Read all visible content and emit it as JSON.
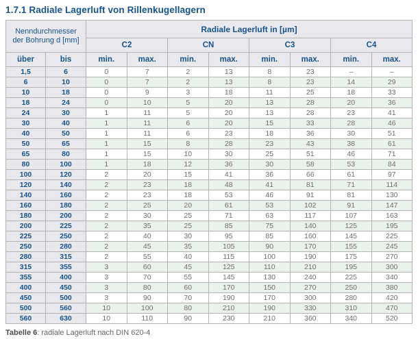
{
  "page": {
    "title": "1.7.1 Radiale Lagerluft von Rillenkugellagern"
  },
  "table": {
    "row_group_header": "Nenndurchmesser der Bohrung d [mm]",
    "col_group_header": "Radiale Lagerluft in [µm]",
    "classes": [
      "C2",
      "CN",
      "C3",
      "C4"
    ],
    "ueber_label": "über",
    "bis_label": "bis",
    "min_label": "min.",
    "max_label": "max.",
    "rows": [
      [
        "1,5",
        "6",
        "0",
        "7",
        "2",
        "13",
        "8",
        "23",
        "–",
        "–"
      ],
      [
        "6",
        "10",
        "0",
        "7",
        "2",
        "13",
        "8",
        "23",
        "14",
        "29"
      ],
      [
        "10",
        "18",
        "0",
        "9",
        "3",
        "18",
        "11",
        "25",
        "18",
        "33"
      ],
      [
        "18",
        "24",
        "0",
        "10",
        "5",
        "20",
        "13",
        "28",
        "20",
        "36"
      ],
      [
        "24",
        "30",
        "1",
        "11",
        "5",
        "20",
        "13",
        "28",
        "23",
        "41"
      ],
      [
        "30",
        "40",
        "1",
        "11",
        "6",
        "20",
        "15",
        "33",
        "28",
        "46"
      ],
      [
        "40",
        "50",
        "1",
        "11",
        "6",
        "23",
        "18",
        "36",
        "30",
        "51"
      ],
      [
        "50",
        "65",
        "1",
        "15",
        "8",
        "28",
        "23",
        "43",
        "38",
        "61"
      ],
      [
        "65",
        "80",
        "1",
        "15",
        "10",
        "30",
        "25",
        "51",
        "46",
        "71"
      ],
      [
        "80",
        "100",
        "1",
        "18",
        "12",
        "36",
        "30",
        "58",
        "53",
        "84"
      ],
      [
        "100",
        "120",
        "2",
        "20",
        "15",
        "41",
        "36",
        "66",
        "61",
        "97"
      ],
      [
        "120",
        "140",
        "2",
        "23",
        "18",
        "48",
        "41",
        "81",
        "71",
        "114"
      ],
      [
        "140",
        "160",
        "2",
        "23",
        "18",
        "53",
        "46",
        "91",
        "81",
        "130"
      ],
      [
        "160",
        "180",
        "2",
        "25",
        "20",
        "61",
        "53",
        "102",
        "91",
        "147"
      ],
      [
        "180",
        "200",
        "2",
        "30",
        "25",
        "71",
        "63",
        "117",
        "107",
        "163"
      ],
      [
        "200",
        "225",
        "2",
        "35",
        "25",
        "85",
        "75",
        "140",
        "125",
        "195"
      ],
      [
        "225",
        "250",
        "2",
        "40",
        "30",
        "95",
        "85",
        "160",
        "145",
        "225"
      ],
      [
        "250",
        "280",
        "2",
        "45",
        "35",
        "105",
        "90",
        "170",
        "155",
        "245"
      ],
      [
        "280",
        "315",
        "2",
        "55",
        "40",
        "115",
        "100",
        "190",
        "175",
        "270"
      ],
      [
        "315",
        "355",
        "3",
        "60",
        "45",
        "125",
        "110",
        "210",
        "195",
        "300"
      ],
      [
        "355",
        "400",
        "3",
        "70",
        "55",
        "145",
        "130",
        "240",
        "225",
        "340"
      ],
      [
        "400",
        "450",
        "3",
        "80",
        "60",
        "170",
        "150",
        "270",
        "250",
        "380"
      ],
      [
        "450",
        "500",
        "3",
        "90",
        "70",
        "190",
        "170",
        "300",
        "280",
        "420"
      ],
      [
        "500",
        "560",
        "10",
        "100",
        "80",
        "210",
        "190",
        "330",
        "310",
        "470"
      ],
      [
        "560",
        "630",
        "10",
        "110",
        "90",
        "230",
        "210",
        "360",
        "340",
        "520"
      ]
    ]
  },
  "caption": {
    "label": "Tabelle 6",
    "text": ": radiale Lagerluft nach DIN 620-4"
  },
  "colors": {
    "accent_navy": "#16538d",
    "header_bg": "#e9e9ed",
    "alt_row_green": "#eaf3eb",
    "value_text_gray": "#6f6f6f",
    "border_gray": "#b3b3b3"
  }
}
